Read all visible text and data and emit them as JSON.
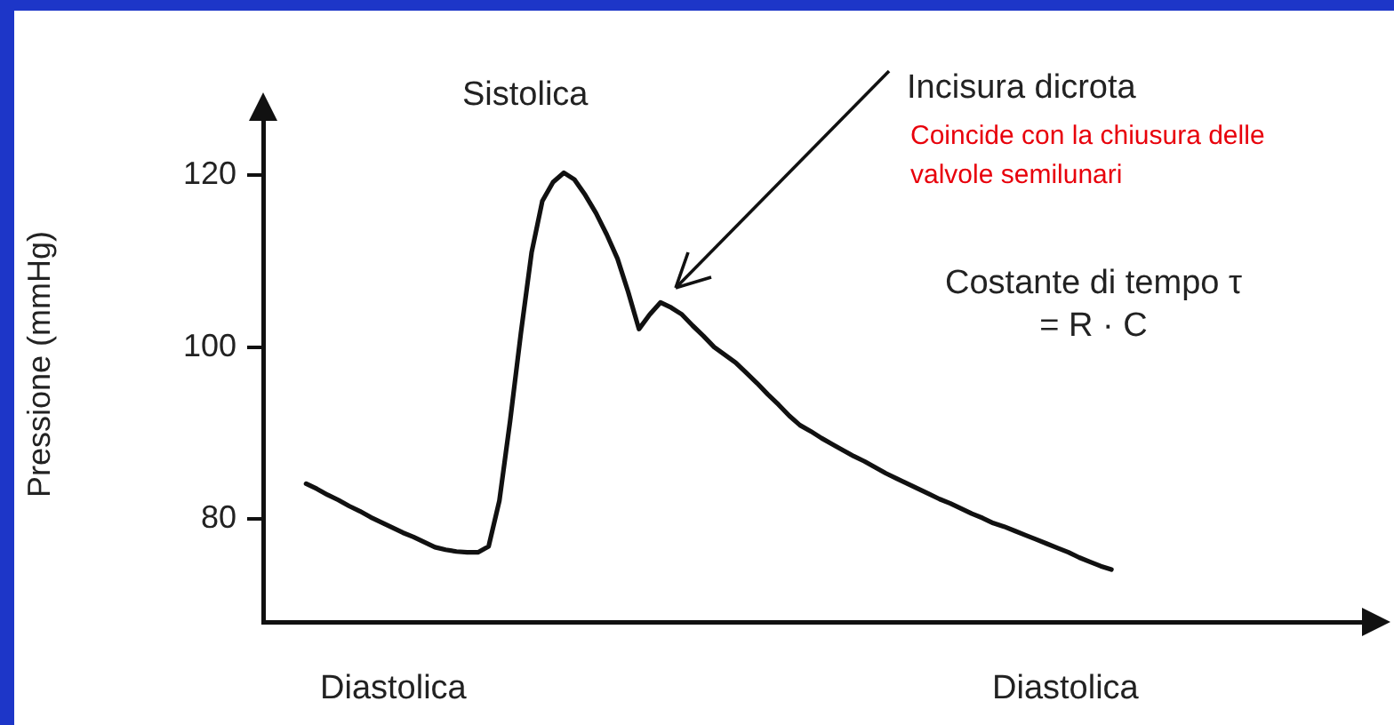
{
  "chart_data": {
    "type": "line",
    "ylabel": "Pressione (mmHg)",
    "annotations": [
      "Sistolica",
      "Incisura dicrota",
      "Coincide con la chiusura delle valvole semilunari",
      "Costante di tempo τ = R · C",
      "Diastolica",
      "Diastolica"
    ],
    "categories": [
      null,
      null,
      null,
      null,
      null,
      null,
      null,
      null,
      null,
      null,
      null,
      null,
      null,
      null,
      null,
      null,
      null,
      null,
      null,
      null,
      null,
      null,
      null,
      null,
      null,
      null,
      null,
      null,
      null,
      null,
      null,
      null,
      null,
      null,
      null,
      null,
      null,
      null,
      null,
      null,
      null,
      null,
      null,
      null,
      null,
      null,
      null,
      null,
      null,
      null,
      null,
      null,
      null,
      null,
      null,
      null,
      null,
      null,
      null,
      null,
      null,
      null,
      null,
      null,
      null,
      null,
      null,
      null,
      null,
      null,
      null,
      null,
      null,
      null,
      null,
      null,
      null,
      null,
      null,
      null,
      null,
      null,
      null,
      null,
      null,
      null,
      null,
      null,
      null,
      null,
      null,
      null,
      null,
      null,
      null,
      null,
      null,
      null,
      null,
      null,
      null,
      null,
      null,
      null
    ],
    "values": [
      null,
      null,
      null,
      null,
      84.1,
      83.5,
      82.8,
      82.2,
      81.5,
      80.9,
      80.2,
      79.6,
      79.0,
      78.4,
      77.9,
      77.3,
      76.7,
      76.4,
      76.2,
      76.1,
      76.1,
      76.8,
      82.1,
      91.4,
      101.6,
      111.0,
      117.0,
      119.2,
      120.3,
      119.5,
      117.7,
      115.6,
      113.1,
      110.3,
      106.4,
      102.1,
      103.8,
      105.2,
      104.6,
      103.8,
      102.5,
      101.3,
      100.0,
      99.1,
      98.2,
      97.0,
      95.8,
      94.5,
      93.3,
      92.0,
      90.9,
      90.2,
      89.4,
      88.7,
      88.0,
      87.3,
      86.7,
      86.0,
      85.3,
      84.7,
      84.1,
      83.5,
      82.9,
      82.3,
      81.8,
      81.2,
      80.6,
      80.1,
      79.5,
      79.1,
      78.6,
      78.1,
      77.6,
      77.1,
      76.6,
      76.1,
      75.5,
      75.0,
      74.5,
      74.1,
      null,
      null,
      null,
      null,
      null,
      null,
      null,
      null,
      null,
      null,
      null,
      null,
      null,
      null,
      null,
      null,
      null,
      null,
      null,
      null,
      null,
      null,
      null,
      null
    ],
    "color": "#111111",
    "ylim": [
      68,
      128
    ],
    "yticks": [
      80,
      100,
      120
    ],
    "tick_labels": "y",
    "marker": "none",
    "line_style": "solid"
  }
}
